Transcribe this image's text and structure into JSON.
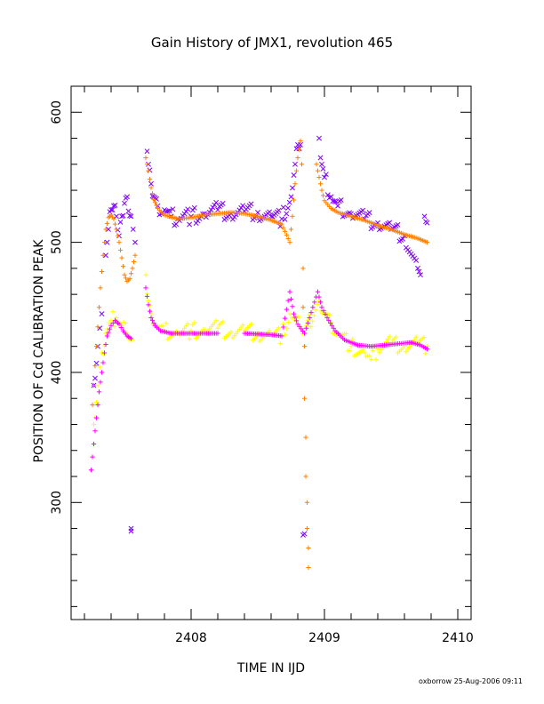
{
  "chart_data": {
    "type": "scatter",
    "title": "Gain History of JMX1, revolution 465",
    "xlabel": "TIME IN IJD",
    "ylabel": "POSITION OF Cd CALIBRATION PEAK",
    "xlim": [
      2407.1,
      2410.1
    ],
    "ylim": [
      210,
      620
    ],
    "xticks": [
      2408,
      2409,
      2410
    ],
    "xtick_labels": [
      "2408",
      "2409",
      "2410"
    ],
    "yticks": [
      300,
      400,
      500,
      600
    ],
    "ytick_labels": [
      "300",
      "400",
      "500",
      "600"
    ],
    "grid": false,
    "footer": "oxborrow 25-Aug-2006 09:11",
    "series": [
      {
        "color": "#7f00ff",
        "marker": "x",
        "description_points": [
          [
            2407.27,
            390
          ],
          [
            2407.3,
            420
          ],
          [
            2407.33,
            445
          ],
          [
            2407.36,
            490
          ],
          [
            2407.38,
            510
          ],
          [
            2407.4,
            525
          ],
          [
            2407.42,
            528
          ],
          [
            2407.44,
            520
          ],
          [
            2407.46,
            505
          ],
          [
            2407.48,
            520
          ],
          [
            2407.5,
            530
          ],
          [
            2407.52,
            535
          ],
          [
            2407.55,
            520
          ],
          [
            2407.58,
            500
          ],
          [
            2407.55,
            280
          ],
          [
            2407.55,
            278
          ],
          [
            2407.67,
            570
          ],
          [
            2407.68,
            560
          ],
          [
            2407.7,
            545
          ],
          [
            2407.72,
            535
          ],
          [
            2407.75,
            528
          ],
          [
            2407.8,
            525
          ],
          [
            2407.85,
            520
          ],
          [
            2407.9,
            518
          ],
          [
            2408.0,
            520
          ],
          [
            2408.1,
            522
          ],
          [
            2408.2,
            525
          ],
          [
            2408.3,
            522
          ],
          [
            2408.4,
            524
          ],
          [
            2408.5,
            523
          ],
          [
            2408.6,
            520
          ],
          [
            2408.68,
            518
          ],
          [
            2408.75,
            535
          ],
          [
            2408.78,
            560
          ],
          [
            2408.8,
            575
          ],
          [
            2408.82,
            575
          ],
          [
            2408.84,
            275
          ],
          [
            2408.85,
            276
          ],
          [
            2408.96,
            580
          ],
          [
            2408.97,
            565
          ],
          [
            2409.0,
            550
          ],
          [
            2409.05,
            535
          ],
          [
            2409.1,
            528
          ],
          [
            2409.2,
            522
          ],
          [
            2409.3,
            518
          ],
          [
            2409.4,
            515
          ],
          [
            2409.5,
            510
          ],
          [
            2409.6,
            505
          ],
          [
            2409.7,
            480
          ],
          [
            2409.72,
            475
          ],
          [
            2409.75,
            520
          ],
          [
            2409.77,
            515
          ]
        ]
      },
      {
        "color": "#ff8000",
        "marker": "+",
        "description_points": [
          [
            2407.26,
            375
          ],
          [
            2407.28,
            405
          ],
          [
            2407.3,
            435
          ],
          [
            2407.32,
            465
          ],
          [
            2407.34,
            490
          ],
          [
            2407.36,
            510
          ],
          [
            2407.38,
            519
          ],
          [
            2407.4,
            521
          ],
          [
            2407.42,
            518
          ],
          [
            2407.44,
            510
          ],
          [
            2407.46,
            500
          ],
          [
            2407.48,
            488
          ],
          [
            2407.5,
            475
          ],
          [
            2407.52,
            470
          ],
          [
            2407.54,
            472
          ],
          [
            2407.56,
            480
          ],
          [
            2407.58,
            490
          ],
          [
            2407.66,
            565
          ],
          [
            2407.68,
            555
          ],
          [
            2407.7,
            542
          ],
          [
            2407.72,
            533
          ],
          [
            2407.75,
            526
          ],
          [
            2407.8,
            521
          ],
          [
            2407.9,
            518
          ],
          [
            2408.0,
            519
          ],
          [
            2408.1,
            521
          ],
          [
            2408.2,
            522
          ],
          [
            2408.3,
            523
          ],
          [
            2408.4,
            522
          ],
          [
            2408.5,
            520
          ],
          [
            2408.6,
            517
          ],
          [
            2408.68,
            514
          ],
          [
            2408.74,
            500
          ],
          [
            2408.76,
            520
          ],
          [
            2408.78,
            545
          ],
          [
            2408.8,
            565
          ],
          [
            2408.82,
            578
          ],
          [
            2408.83,
            560
          ],
          [
            2408.84,
            480
          ],
          [
            2408.84,
            450
          ],
          [
            2408.85,
            420
          ],
          [
            2408.85,
            380
          ],
          [
            2408.86,
            350
          ],
          [
            2408.86,
            320
          ],
          [
            2408.87,
            300
          ],
          [
            2408.87,
            280
          ],
          [
            2408.88,
            265
          ],
          [
            2408.88,
            250
          ],
          [
            2408.94,
            560
          ],
          [
            2408.96,
            550
          ],
          [
            2408.98,
            540
          ],
          [
            2409.0,
            532
          ],
          [
            2409.05,
            526
          ],
          [
            2409.1,
            523
          ],
          [
            2409.2,
            520
          ],
          [
            2409.3,
            517
          ],
          [
            2409.4,
            513
          ],
          [
            2409.5,
            510
          ],
          [
            2409.6,
            506
          ],
          [
            2409.7,
            503
          ],
          [
            2409.77,
            500
          ]
        ]
      },
      {
        "color": "#ffff00",
        "marker": "+",
        "description_points": [
          [
            2407.27,
            360
          ],
          [
            2407.3,
            390
          ],
          [
            2407.33,
            415
          ],
          [
            2407.36,
            430
          ],
          [
            2407.4,
            440
          ],
          [
            2407.44,
            442
          ],
          [
            2407.48,
            436
          ],
          [
            2407.52,
            430
          ],
          [
            2407.56,
            425
          ],
          [
            2407.66,
            475
          ],
          [
            2407.68,
            455
          ],
          [
            2407.7,
            445
          ],
          [
            2407.75,
            436
          ],
          [
            2407.8,
            432
          ],
          [
            2407.9,
            430
          ],
          [
            2408.0,
            432
          ],
          [
            2408.1,
            433
          ],
          [
            2408.2,
            434
          ],
          [
            2408.3,
            431
          ],
          [
            2408.4,
            432
          ],
          [
            2408.5,
            430
          ],
          [
            2408.6,
            429
          ],
          [
            2408.68,
            428
          ],
          [
            2408.74,
            445
          ],
          [
            2408.78,
            440
          ],
          [
            2408.82,
            435
          ],
          [
            2408.85,
            430
          ],
          [
            2408.96,
            455
          ],
          [
            2409.0,
            445
          ],
          [
            2409.05,
            438
          ],
          [
            2409.1,
            430
          ],
          [
            2409.2,
            420
          ],
          [
            2409.3,
            415
          ],
          [
            2409.35,
            410
          ],
          [
            2409.4,
            418
          ],
          [
            2409.5,
            422
          ],
          [
            2409.6,
            420
          ],
          [
            2409.7,
            423
          ],
          [
            2409.77,
            420
          ]
        ]
      },
      {
        "color": "#ff00ff",
        "marker": "+",
        "description_points": [
          [
            2407.25,
            325
          ],
          [
            2407.27,
            345
          ],
          [
            2407.29,
            365
          ],
          [
            2407.31,
            385
          ],
          [
            2407.33,
            400
          ],
          [
            2407.35,
            415
          ],
          [
            2407.37,
            428
          ],
          [
            2407.4,
            436
          ],
          [
            2407.43,
            440
          ],
          [
            2407.46,
            437
          ],
          [
            2407.49,
            432
          ],
          [
            2407.52,
            428
          ],
          [
            2407.55,
            426
          ],
          [
            2407.66,
            465
          ],
          [
            2407.68,
            452
          ],
          [
            2407.7,
            442
          ],
          [
            2407.73,
            436
          ],
          [
            2407.77,
            432
          ],
          [
            2407.85,
            430
          ],
          [
            2408.0,
            430
          ],
          [
            2408.2,
            430
          ],
          [
            2408.4,
            430
          ],
          [
            2408.6,
            429
          ],
          [
            2408.68,
            428
          ],
          [
            2408.74,
            462
          ],
          [
            2408.77,
            445
          ],
          [
            2408.8,
            437
          ],
          [
            2408.85,
            430
          ],
          [
            2408.95,
            462
          ],
          [
            2408.98,
            450
          ],
          [
            2409.02,
            442
          ],
          [
            2409.08,
            432
          ],
          [
            2409.15,
            425
          ],
          [
            2409.25,
            421
          ],
          [
            2409.35,
            420
          ],
          [
            2409.45,
            421
          ],
          [
            2409.55,
            422
          ],
          [
            2409.65,
            423
          ],
          [
            2409.72,
            421
          ],
          [
            2409.77,
            418
          ]
        ]
      }
    ]
  }
}
